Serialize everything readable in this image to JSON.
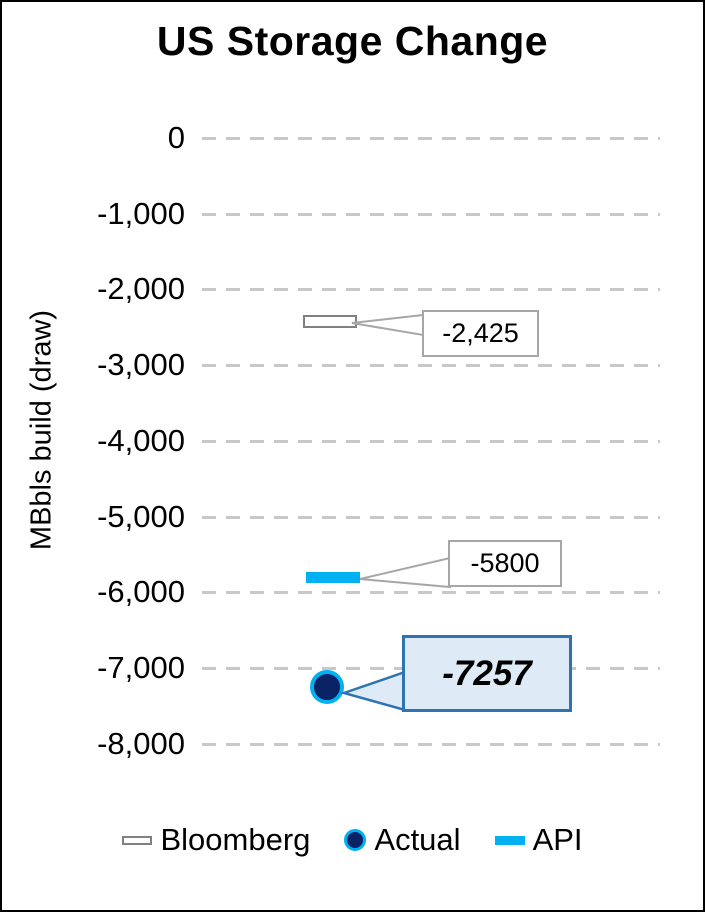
{
  "chart_data": {
    "type": "scatter",
    "title": "US Storage Change",
    "xlabel": "",
    "ylabel": "MBbls build (draw)",
    "ylim": [
      -8000,
      0
    ],
    "ytick_interval": 1000,
    "ytick_labels": [
      "0",
      "-1,000",
      "-2,000",
      "-3,000",
      "-4,000",
      "-5,000",
      "-6,000",
      "-7,000",
      "-8,000"
    ],
    "grid": "horizontal dashed",
    "legend_position": "bottom",
    "series": [
      {
        "name": "Bloomberg",
        "value": -2425,
        "data_label": "-2,425",
        "marker": "open-rectangle",
        "marker_fill": "#FFFFFF",
        "marker_border": "#808080"
      },
      {
        "name": "Actual",
        "value": -7257,
        "data_label": "-7257",
        "marker": "circle",
        "marker_fill": "#0B2265",
        "marker_border": "#00B0F0"
      },
      {
        "name": "API",
        "value": -5800,
        "data_label": "-5800",
        "marker": "dash",
        "marker_fill": "#00B0F0",
        "marker_border": "#00B0F0"
      }
    ],
    "colors": {
      "gridline": "#C8C8C8",
      "callout_border": "#A6A6A6",
      "callout_fill": "#FFFFFF",
      "highlight_border": "#2E74B5",
      "highlight_fill": "#DEEBF7",
      "api_cyan": "#00B0F0",
      "actual_navy": "#0B2265",
      "text": "#000000"
    }
  }
}
